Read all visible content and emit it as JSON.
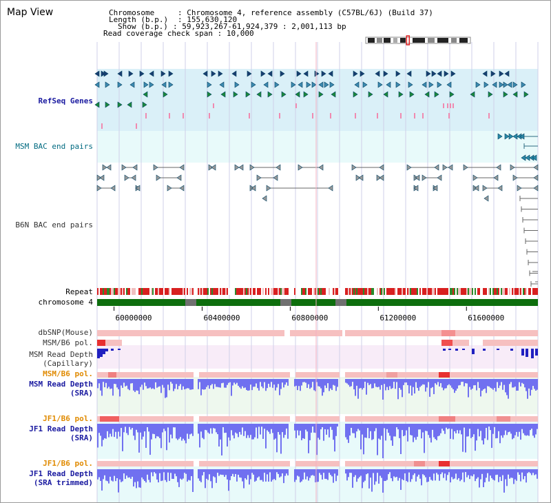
{
  "app": {
    "title": "Map View"
  },
  "info": {
    "chromosome_label": "Chromosome",
    "chromosome_value": "Chromosome 4, reference assembly (C57BL/6J) (Build 37)",
    "length_label": "Length (b.p.)",
    "length_value": "155,630,120",
    "show_label": "Show (b.p.)",
    "show_value": "59,923,267-61,924,379 : 2,001,113 bp",
    "coverage_label": "Read coverage check span",
    "coverage_value": "10,000"
  },
  "tracks": [
    {
      "id": "refseq",
      "label": "RefSeq Genes",
      "color": "#1a1aa0",
      "bold": true
    },
    {
      "id": "msm-bac",
      "label": "MSM BAC end pairs",
      "color": "#006a80",
      "bold": false
    },
    {
      "id": "b6n-bac",
      "label": "B6N BAC end pairs",
      "color": "#333333",
      "bold": false
    },
    {
      "id": "repeat",
      "label": "Repeat",
      "color": "#000000",
      "bold": false
    },
    {
      "id": "chromosome",
      "label": "chromosome 4",
      "color": "#000000",
      "bold": false
    },
    {
      "id": "dbsnp",
      "label": "dbSNP(Mouse)",
      "color": "#333333",
      "bold": false
    },
    {
      "id": "msm-b6-pol-1",
      "label": "MSM/B6 pol.",
      "color": "#333333",
      "bold": false
    },
    {
      "id": "msm-depth-cap",
      "label": "MSM Read Depth\n(Capillary)",
      "color": "#333333",
      "bold": false
    },
    {
      "id": "msm-b6-pol-2",
      "label": "MSM/B6 pol.",
      "color": "#e08a00",
      "bold": true
    },
    {
      "id": "msm-depth-sra",
      "label": "MSM Read Depth\n(SRA)",
      "color": "#1a1aa0",
      "bold": true
    },
    {
      "id": "jf1-b6-pol-1",
      "label": "JF1/B6 pol.",
      "color": "#e08a00",
      "bold": true
    },
    {
      "id": "jf1-depth-sra",
      "label": "JF1 Read Depth\n(SRA)",
      "color": "#1a1aa0",
      "bold": true
    },
    {
      "id": "jf1-b6-pol-2",
      "label": "JF1/B6 pol.",
      "color": "#e08a00",
      "bold": true
    },
    {
      "id": "jf1-depth-trim",
      "label": "JF1 Read Depth\n(SRA trimmed)",
      "color": "#1a1aa0",
      "bold": true
    }
  ],
  "axis": {
    "tick_labels": [
      "60000000",
      "60400000",
      "60800000",
      "61200000",
      "61600000"
    ],
    "tick_values": [
      60000000,
      60400000,
      60800000,
      61200000,
      61600000
    ],
    "range_start": 59923267,
    "range_end": 61924379
  },
  "colors": {
    "refseq_bg": "#daf0f8",
    "bac_bg": "#e8fafa",
    "polymorphism": "#f6c0c0",
    "polymorphism_hot": "#e83030",
    "depth_capillary": "#2020c0",
    "depth_sra": "#7070f0",
    "depth_sra_bg": "#eef8ee",
    "depth_cap_bg": "#f8ecf8",
    "chromosome": "#0d6e0d",
    "chromosome_gap": "#707070",
    "repeat_red": "#d82020",
    "repeat_green": "#2a8a2a",
    "grid": "#cfcfe8"
  },
  "ideogram": {
    "marker_position": 0.39
  }
}
